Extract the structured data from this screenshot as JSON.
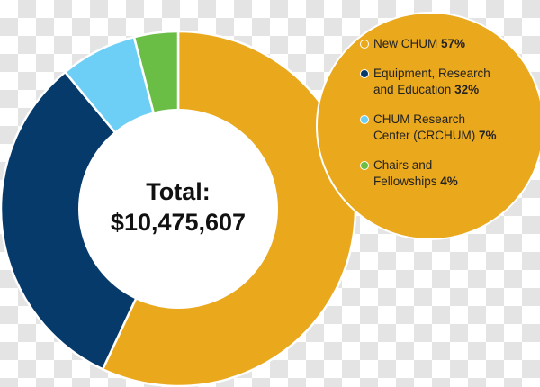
{
  "chart_data": {
    "type": "pie",
    "variant": "donut",
    "center_label": [
      "Total:",
      "$10,475,607"
    ],
    "slices": [
      {
        "label": "New CHUM",
        "label_lines": [
          "New CHUM"
        ],
        "pct_text": "57%",
        "value": 57,
        "color": "#EAA81D"
      },
      {
        "label": "Equipment, Research and Education",
        "label_lines": [
          "Equipment, Research",
          "and Education"
        ],
        "pct_text": "32%",
        "value": 32,
        "color": "#053A6B"
      },
      {
        "label": "CHUM Research Center (CRCHUM)",
        "label_lines": [
          "CHUM Research",
          "Center (CRCHUM)"
        ],
        "pct_text": "7%",
        "value": 7,
        "color": "#6DCFF6"
      },
      {
        "label": "Chairs and Fellowships",
        "label_lines": [
          "Chairs and",
          "Fellowships"
        ],
        "pct_text": "4%",
        "value": 4,
        "color": "#6ABD45"
      }
    ],
    "legend_placement": "top-right",
    "legend_background": "#EAA81D"
  }
}
